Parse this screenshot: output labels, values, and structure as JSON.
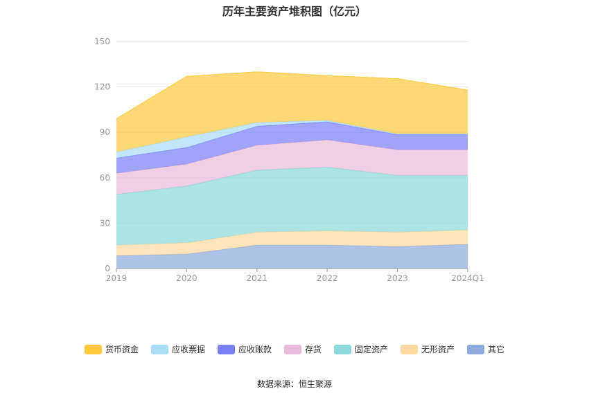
{
  "source_label": "数据来源：恒生聚源",
  "chart_data": {
    "type": "area",
    "stacked": true,
    "title": "历年主要资产堆积图（亿元）",
    "xlabel": "",
    "ylabel": "",
    "categories": [
      "2019",
      "2020",
      "2021",
      "2022",
      "2023",
      "2024Q1"
    ],
    "y_ticks": [
      "0",
      "30",
      "60",
      "90",
      "120",
      "150"
    ],
    "ylim": [
      0,
      150
    ],
    "grid": true,
    "legend_position": "bottom",
    "series": [
      {
        "name": "其它",
        "color": "#8faadc",
        "values": [
          8.5,
          9.5,
          15.5,
          15.5,
          14.5,
          16
        ]
      },
      {
        "name": "无形资产",
        "color": "#fdd9a0",
        "values": [
          7,
          7.5,
          8.5,
          9.5,
          9.5,
          9.5
        ]
      },
      {
        "name": "固定资产",
        "color": "#8dd9d9",
        "values": [
          33.5,
          37.5,
          41,
          42,
          37.5,
          36
        ]
      },
      {
        "name": "存货",
        "color": "#e8bcd9",
        "values": [
          14,
          14.5,
          16.5,
          18,
          17,
          17
        ]
      },
      {
        "name": "应收账款",
        "color": "#7b7ff5",
        "values": [
          10,
          11,
          12.5,
          12,
          10,
          10
        ]
      },
      {
        "name": "应收票据",
        "color": "#a9ddf7",
        "values": [
          4,
          7,
          2.5,
          1,
          0.5,
          0.5
        ]
      },
      {
        "name": "货币资金",
        "color": "#fec93e",
        "values": [
          22,
          40,
          33.5,
          29.5,
          36.5,
          29
        ]
      }
    ],
    "legend_order": [
      "货币资金",
      "应收票据",
      "应收账款",
      "存货",
      "固定资产",
      "无形资产",
      "其它"
    ]
  }
}
